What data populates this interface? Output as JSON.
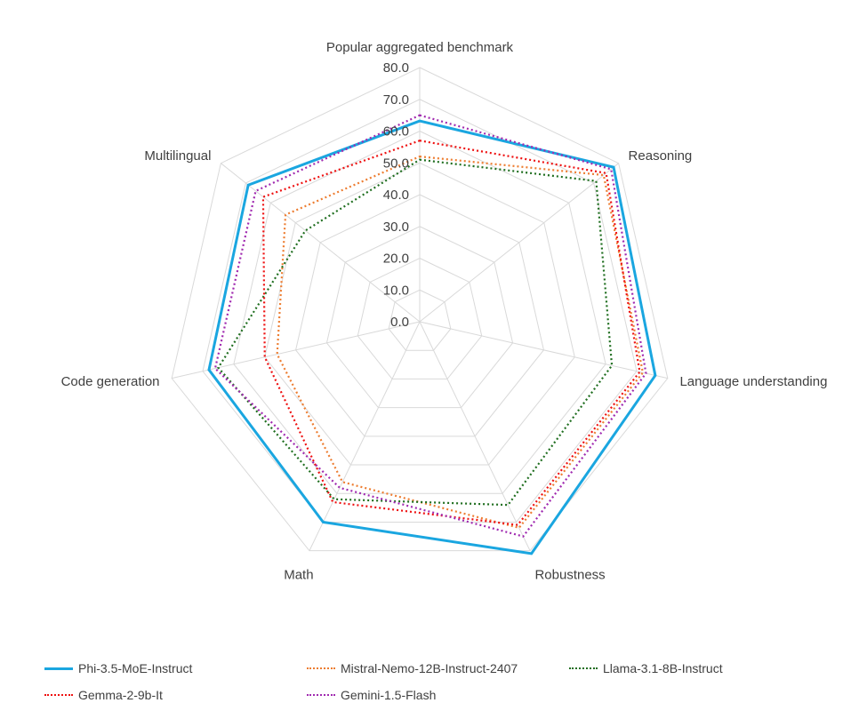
{
  "chart_data": {
    "type": "radar",
    "title": "",
    "axes": [
      "Popular aggregated benchmark",
      "Reasoning",
      "Language understanding",
      "Robustness",
      "Math",
      "Code generation",
      "Multilingual"
    ],
    "rlim": [
      0,
      80
    ],
    "ticks": [
      "0.0",
      "10.0",
      "20.0",
      "30.0",
      "40.0",
      "50.0",
      "60.0",
      "70.0",
      "80.0"
    ],
    "grid": true,
    "series": [
      {
        "name": "Phi-3.5-MoE-Instruct",
        "color": "#1aa6e0",
        "style": "solid",
        "values": [
          63.2,
          78.0,
          76.0,
          81.0,
          70.0,
          68.0,
          69.0
        ]
      },
      {
        "name": "Mistral-Nemo-12B-Instruct-2407",
        "color": "#ed7d31",
        "style": "dotted",
        "values": [
          52.0,
          74.0,
          72.0,
          72.0,
          56.0,
          46.0,
          54.0
        ]
      },
      {
        "name": "Llama-3.1-8B-Instruct",
        "color": "#1f6e1f",
        "style": "dotted",
        "values": [
          51.0,
          71.0,
          62.0,
          64.0,
          62.0,
          65.0,
          46.0
        ]
      },
      {
        "name": "Gemma-2-9b-It",
        "color": "#ee1111",
        "style": "dotted",
        "values": [
          57.0,
          75.0,
          71.0,
          71.0,
          63.0,
          50.0,
          63.0
        ]
      },
      {
        "name": "Gemini-1.5-Flash",
        "color": "#a02ab0",
        "style": "dotted",
        "values": [
          65.0,
          77.0,
          73.0,
          75.0,
          58.0,
          66.0,
          66.0
        ]
      }
    ],
    "legend_position": "bottom"
  }
}
